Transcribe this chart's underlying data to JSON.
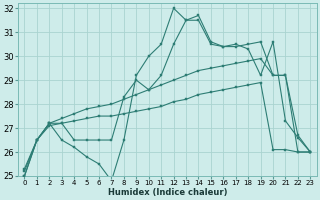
{
  "xlabel": "Humidex (Indice chaleur)",
  "background_color": "#ceecea",
  "grid_color": "#aad4d0",
  "line_color": "#2d7d74",
  "xlim": [
    -0.5,
    23.5
  ],
  "ylim": [
    25,
    32.2
  ],
  "yticks": [
    25,
    26,
    27,
    28,
    29,
    30,
    31,
    32
  ],
  "xticks": [
    0,
    1,
    2,
    3,
    4,
    5,
    6,
    7,
    8,
    9,
    10,
    11,
    12,
    13,
    14,
    15,
    16,
    17,
    18,
    19,
    20,
    21,
    22,
    23
  ],
  "series": [
    {
      "x": [
        0,
        1,
        2,
        3,
        4,
        5,
        6,
        7,
        8,
        9,
        10,
        11,
        12,
        13,
        14,
        15,
        16,
        17,
        18,
        19,
        20,
        21,
        22,
        23
      ],
      "y": [
        25.0,
        26.5,
        27.2,
        26.5,
        26.2,
        25.8,
        25.5,
        24.8,
        26.5,
        29.2,
        30.0,
        30.5,
        32.0,
        31.5,
        31.7,
        30.6,
        30.4,
        30.5,
        30.3,
        29.2,
        30.6,
        27.3,
        26.6,
        26.0
      ]
    },
    {
      "x": [
        0,
        1,
        2,
        3,
        4,
        5,
        6,
        7,
        8,
        9,
        10,
        11,
        12,
        13,
        14,
        15,
        16,
        17,
        18,
        19,
        20,
        21,
        22,
        23
      ],
      "y": [
        25.0,
        26.5,
        27.2,
        27.2,
        26.5,
        26.5,
        26.5,
        26.5,
        28.3,
        29.0,
        28.6,
        29.2,
        30.5,
        31.5,
        31.5,
        30.5,
        30.4,
        30.4,
        30.5,
        30.6,
        29.2,
        29.2,
        26.7,
        26.0
      ]
    },
    {
      "x": [
        0,
        1,
        2,
        3,
        4,
        5,
        6,
        7,
        8,
        9,
        10,
        11,
        12,
        13,
        14,
        15,
        16,
        17,
        18,
        19,
        20,
        21,
        22,
        23
      ],
      "y": [
        25.3,
        26.5,
        27.2,
        27.4,
        27.6,
        27.8,
        27.9,
        28.0,
        28.2,
        28.4,
        28.6,
        28.8,
        29.0,
        29.2,
        29.4,
        29.5,
        29.6,
        29.7,
        29.8,
        29.9,
        29.2,
        29.2,
        26.0,
        26.0
      ]
    },
    {
      "x": [
        0,
        1,
        2,
        3,
        4,
        5,
        6,
        7,
        8,
        9,
        10,
        11,
        12,
        13,
        14,
        15,
        16,
        17,
        18,
        19,
        20,
        21,
        22,
        23
      ],
      "y": [
        25.2,
        26.5,
        27.1,
        27.2,
        27.3,
        27.4,
        27.5,
        27.5,
        27.6,
        27.7,
        27.8,
        27.9,
        28.1,
        28.2,
        28.4,
        28.5,
        28.6,
        28.7,
        28.8,
        28.9,
        26.1,
        26.1,
        26.0,
        26.0
      ]
    }
  ]
}
